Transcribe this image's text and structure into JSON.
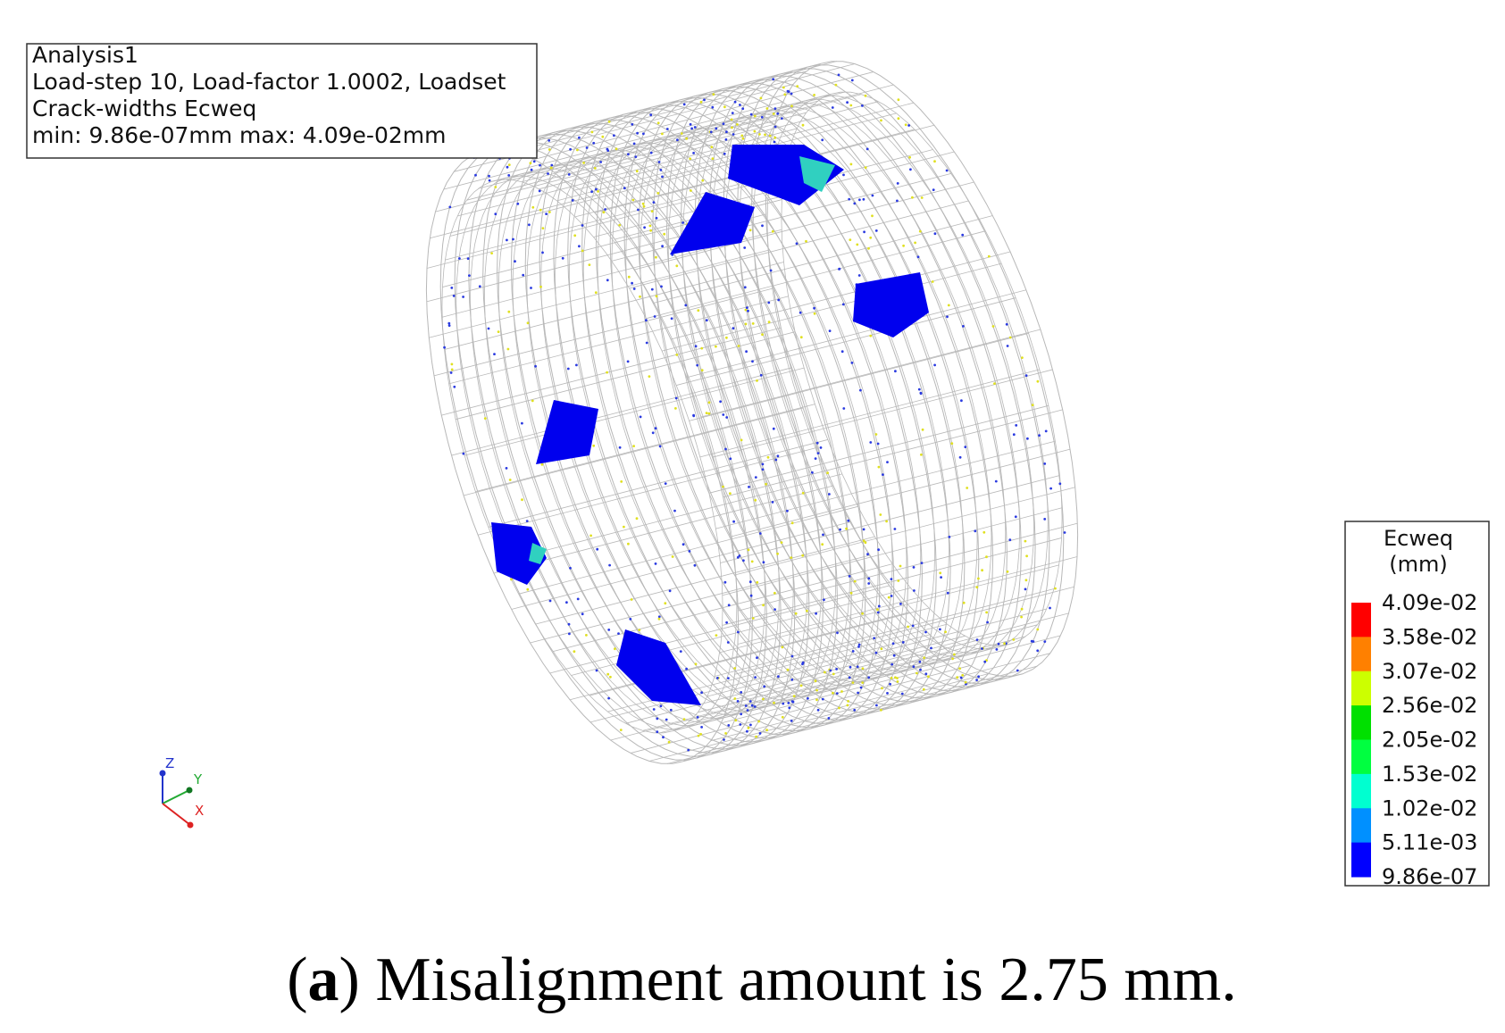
{
  "info_box": {
    "lines": [
      "Analysis1",
      "Load-step 10, Load-factor 1.0002, Loadset",
      "Crack-widths Ecweq",
      "min: 9.86e-07mm max: 4.09e-02mm"
    ]
  },
  "legend": {
    "title": "Ecweq",
    "unit": "(mm)",
    "labels": [
      "4.09e-02",
      "3.58e-02",
      "3.07e-02",
      "2.56e-02",
      "2.05e-02",
      "1.53e-02",
      "1.02e-02",
      "5.11e-03",
      "9.86e-07"
    ],
    "colors": [
      "#ff0000",
      "#ff8000",
      "#ccff00",
      "#00e000",
      "#00ff40",
      "#00ffd0",
      "#0090ff",
      "#0000ff"
    ]
  },
  "axes_triad": {
    "z": "Z",
    "y": "Y",
    "x": "X"
  },
  "caption": {
    "open": "(",
    "label": "a",
    "text": ") Misalignment amount is 2.75 mm."
  }
}
